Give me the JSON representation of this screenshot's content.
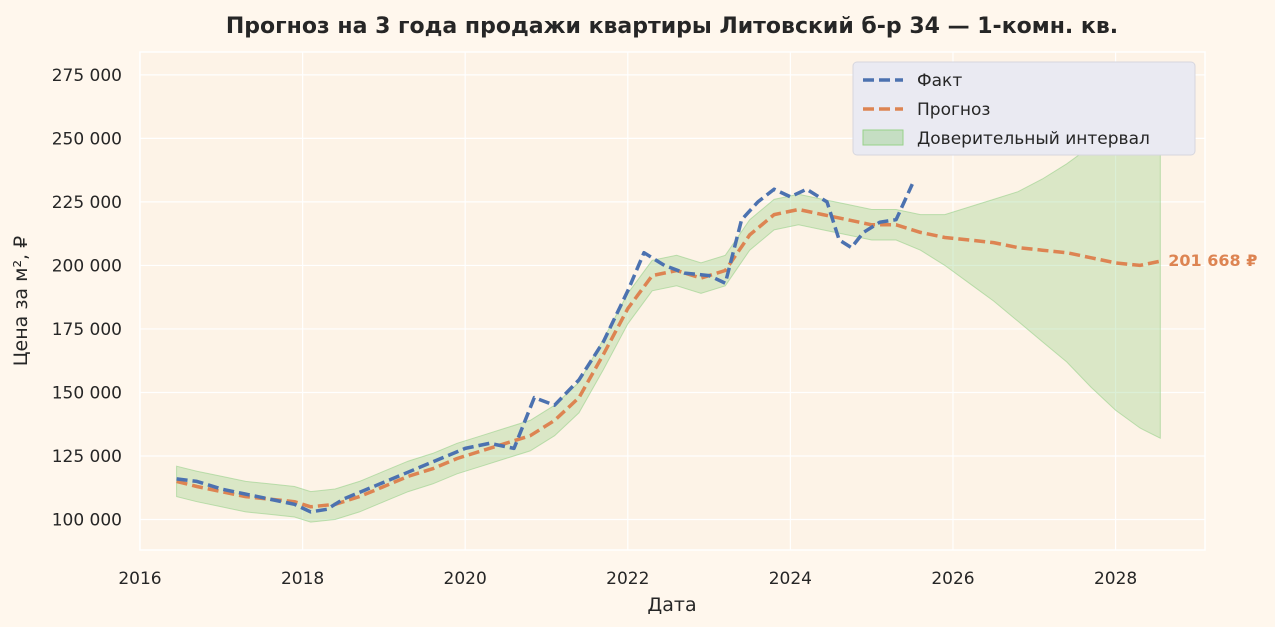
{
  "chart_data": {
    "type": "line",
    "title": "Прогноз на 3 года продажи квартиры  Литовский б-р 34 — 1-комн. кв.",
    "xlabel": "Дата",
    "ylabel": "Цена за м², ₽",
    "xlim": [
      2016.0,
      2029.1
    ],
    "ylim": [
      88000,
      284000
    ],
    "x_ticks": [
      2016,
      2018,
      2020,
      2022,
      2024,
      2026,
      2028
    ],
    "y_ticks": [
      100000,
      125000,
      150000,
      175000,
      200000,
      225000,
      250000,
      275000
    ],
    "y_tick_labels": [
      "100 000",
      "125 000",
      "150 000",
      "175 000",
      "200 000",
      "225 000",
      "250 000",
      "275 000"
    ],
    "grid": true,
    "legend_position": "top-right",
    "series": [
      {
        "name": "Факт",
        "color": "#4c72b0",
        "style": "dashed",
        "x": [
          2016.45,
          2016.7,
          2017.0,
          2017.3,
          2017.6,
          2017.9,
          2018.1,
          2018.3,
          2018.5,
          2018.8,
          2019.1,
          2019.4,
          2019.7,
          2020.0,
          2020.3,
          2020.6,
          2020.85,
          2021.1,
          2021.4,
          2021.7,
          2022.0,
          2022.2,
          2022.45,
          2022.7,
          2023.0,
          2023.2,
          2023.4,
          2023.6,
          2023.8,
          2024.0,
          2024.2,
          2024.45,
          2024.6,
          2024.75,
          2024.9,
          2025.1,
          2025.3,
          2025.5
        ],
        "y": [
          116000,
          115000,
          112000,
          110000,
          108000,
          106000,
          103000,
          104000,
          108000,
          112000,
          116000,
          120000,
          124000,
          128000,
          130000,
          128000,
          148000,
          145000,
          155000,
          170000,
          190000,
          205000,
          200000,
          197000,
          196000,
          193000,
          218000,
          225000,
          230000,
          227000,
          230000,
          225000,
          210000,
          207000,
          213000,
          217000,
          218000,
          232000
        ]
      },
      {
        "name": "Прогноз",
        "color": "#dd8452",
        "style": "dashed",
        "x": [
          2016.45,
          2016.7,
          2017.0,
          2017.3,
          2017.6,
          2017.9,
          2018.1,
          2018.4,
          2018.7,
          2019.0,
          2019.3,
          2019.6,
          2019.9,
          2020.2,
          2020.5,
          2020.8,
          2021.1,
          2021.4,
          2021.7,
          2022.0,
          2022.3,
          2022.6,
          2022.9,
          2023.2,
          2023.5,
          2023.8,
          2024.1,
          2024.4,
          2024.7,
          2025.0,
          2025.3,
          2025.6,
          2025.9,
          2026.2,
          2026.5,
          2026.8,
          2027.1,
          2027.4,
          2027.7,
          2028.0,
          2028.3,
          2028.55
        ],
        "y": [
          115000,
          113000,
          111000,
          109000,
          108000,
          107000,
          105000,
          106000,
          109000,
          113000,
          117000,
          120000,
          124000,
          127000,
          130000,
          133000,
          139000,
          148000,
          165000,
          183000,
          196000,
          198000,
          195000,
          198000,
          212000,
          220000,
          222000,
          220000,
          218000,
          216000,
          216000,
          213000,
          211000,
          210000,
          209000,
          207000,
          206000,
          205000,
          203000,
          201000,
          200000,
          201668
        ]
      }
    ],
    "band": {
      "name": "Доверительный интервал",
      "color": "#98d18a",
      "x": [
        2016.45,
        2016.7,
        2017.0,
        2017.3,
        2017.6,
        2017.9,
        2018.1,
        2018.4,
        2018.7,
        2019.0,
        2019.3,
        2019.6,
        2019.9,
        2020.2,
        2020.5,
        2020.8,
        2021.1,
        2021.4,
        2021.7,
        2022.0,
        2022.3,
        2022.6,
        2022.9,
        2023.2,
        2023.5,
        2023.8,
        2024.1,
        2024.4,
        2024.7,
        2025.0,
        2025.3,
        2025.6,
        2025.9,
        2026.2,
        2026.5,
        2026.8,
        2027.1,
        2027.4,
        2027.7,
        2028.0,
        2028.3,
        2028.55
      ],
      "lower": [
        109000,
        107000,
        105000,
        103000,
        102000,
        101000,
        99000,
        100000,
        103000,
        107000,
        111000,
        114000,
        118000,
        121000,
        124000,
        127000,
        133000,
        142000,
        159000,
        177000,
        190000,
        192000,
        189000,
        192000,
        206000,
        214000,
        216000,
        214000,
        212000,
        210000,
        210000,
        206000,
        200000,
        193000,
        186000,
        178000,
        170000,
        162000,
        152000,
        143000,
        136000,
        132000
      ],
      "upper": [
        121000,
        119000,
        117000,
        115000,
        114000,
        113000,
        111000,
        112000,
        115000,
        119000,
        123000,
        126000,
        130000,
        133000,
        136000,
        139000,
        145000,
        154000,
        171000,
        189000,
        202000,
        204000,
        201000,
        204000,
        218000,
        226000,
        228000,
        226000,
        224000,
        222000,
        222000,
        220000,
        220000,
        223000,
        226000,
        229000,
        234000,
        240000,
        247000,
        255000,
        264000,
        272000
      ]
    },
    "end_label": "201 668 ₽"
  }
}
